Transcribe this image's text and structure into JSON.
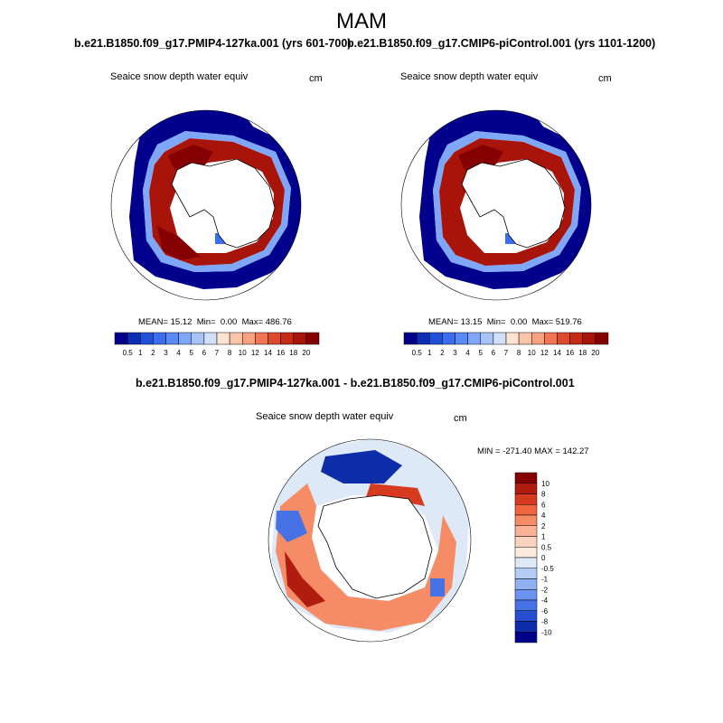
{
  "page": {
    "title": "MAM"
  },
  "panels": [
    {
      "case_title": "b.e21.B1850.f09_g17.PMIP4-127ka.001 (yrs 601-700)",
      "variable": "Seaice snow depth water equiv",
      "units": "cm",
      "stats": {
        "mean_label": "MEAN=",
        "mean": "15.12",
        "min_label": "Min=",
        "min": "0.00",
        "max_label": "Max=",
        "max": "486.76"
      }
    },
    {
      "case_title": "b.e21.B1850.f09_g17.CMIP6-piControl.001 (yrs 1101-1200)",
      "variable": "Seaice snow depth water equiv",
      "units": "cm",
      "stats": {
        "mean_label": "MEAN=",
        "mean": "13.15",
        "min_label": "Min=",
        "min": "0.00",
        "max_label": "Max=",
        "max": "519.76"
      }
    }
  ],
  "diff_panel": {
    "title": "b.e21.B1850.f09_g17.PMIP4-127ka.001 - b.e21.B1850.f09_g17.CMIP6-piControl.001",
    "variable": "Seaice snow depth water equiv",
    "units": "cm",
    "minmax": "MIN = -271.40 MAX = 142.27"
  },
  "colorbars": {
    "abs": {
      "labels": [
        "0.5",
        "1",
        "2",
        "3",
        "4",
        "5",
        "6",
        "7",
        "8",
        "10",
        "12",
        "14",
        "16",
        "18",
        "20"
      ],
      "colors": [
        "#00008c",
        "#0a2eb5",
        "#1f50d9",
        "#3d6ef0",
        "#5b8af5",
        "#7fa7f7",
        "#a6c4f7",
        "#cfe0f7",
        "#fde3d2",
        "#fbc4a8",
        "#f6a07f",
        "#f07655",
        "#de4a2c",
        "#c42a16",
        "#a8140a",
        "#850000"
      ]
    },
    "diff": {
      "labels": [
        "10",
        "8",
        "6",
        "4",
        "2",
        "1",
        "0.5",
        "0",
        "-0.5",
        "-1",
        "-2",
        "-4",
        "-6",
        "-8",
        "-10"
      ],
      "colors": [
        "#850000",
        "#b01c0f",
        "#d63b20",
        "#f0643e",
        "#f68c66",
        "#f9b294",
        "#fbd3bf",
        "#fdeadf",
        "#dde9f7",
        "#b5cdf5",
        "#8fb2f3",
        "#6b93ef",
        "#4672e6",
        "#2650cf",
        "#0d2ea8",
        "#00008c"
      ]
    }
  },
  "chart_data": [
    {
      "type": "heatmap",
      "title": "b.e21.B1850.f09_g17.PMIP4-127ka.001 (yrs 601-700)",
      "subtitle": "Seaice snow depth water equiv",
      "units": "cm",
      "projection": "south polar stereographic",
      "color_levels": [
        0.5,
        1,
        2,
        3,
        4,
        5,
        6,
        7,
        8,
        10,
        12,
        14,
        16,
        18,
        20
      ],
      "mean": 15.12,
      "min": 0.0,
      "max": 486.76
    },
    {
      "type": "heatmap",
      "title": "b.e21.B1850.f09_g17.CMIP6-piControl.001 (yrs 1101-1200)",
      "subtitle": "Seaice snow depth water equiv",
      "units": "cm",
      "projection": "south polar stereographic",
      "color_levels": [
        0.5,
        1,
        2,
        3,
        4,
        5,
        6,
        7,
        8,
        10,
        12,
        14,
        16,
        18,
        20
      ],
      "mean": 13.15,
      "min": 0.0,
      "max": 519.76
    },
    {
      "type": "heatmap",
      "title": "b.e21.B1850.f09_g17.PMIP4-127ka.001 - b.e21.B1850.f09_g17.CMIP6-piControl.001",
      "subtitle": "Seaice snow depth water equiv",
      "units": "cm",
      "projection": "south polar stereographic",
      "color_levels": [
        -10,
        -8,
        -6,
        -4,
        -2,
        -1,
        -0.5,
        0,
        0.5,
        1,
        2,
        4,
        6,
        8,
        10
      ],
      "min": -271.4,
      "max": 142.27
    }
  ]
}
